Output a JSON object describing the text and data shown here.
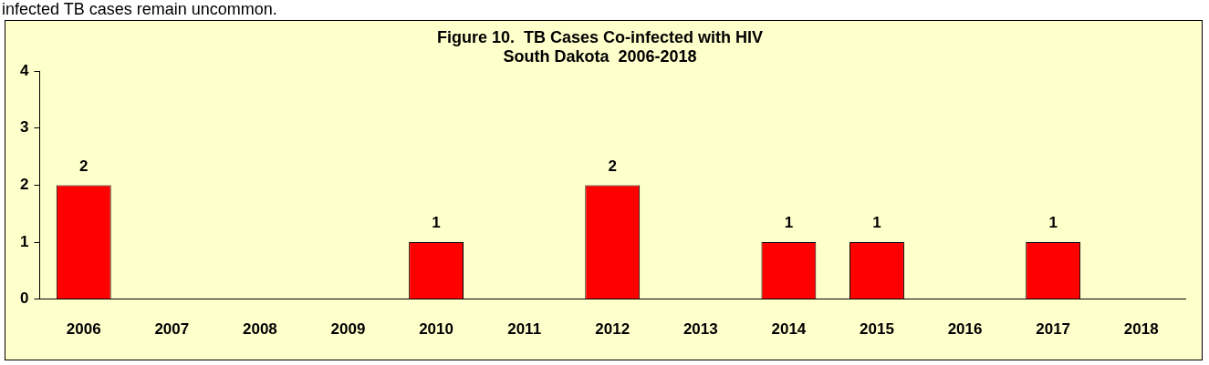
{
  "chart_data": {
    "type": "bar",
    "title": "Figure 10.  TB Cases Co-infected with HIV",
    "subtitle": "South Dakota  2006-2018",
    "annotations": [
      "infected TB cases remain uncommon."
    ],
    "categories": [
      "2006",
      "2007",
      "2008",
      "2009",
      "2010",
      "2011",
      "2012",
      "2013",
      "2014",
      "2015",
      "2016",
      "2017",
      "2018"
    ],
    "values": [
      2,
      0,
      0,
      0,
      1,
      0,
      2,
      0,
      1,
      1,
      0,
      1,
      0
    ],
    "value_labels": [
      "2",
      null,
      null,
      null,
      "1",
      null,
      "2",
      null,
      "1",
      "1",
      null,
      "1",
      null
    ],
    "color": "#ff0000",
    "ylim": [
      0,
      4
    ],
    "yticks": [
      0,
      1,
      2,
      3,
      4
    ],
    "grid": false,
    "legend": false
  }
}
